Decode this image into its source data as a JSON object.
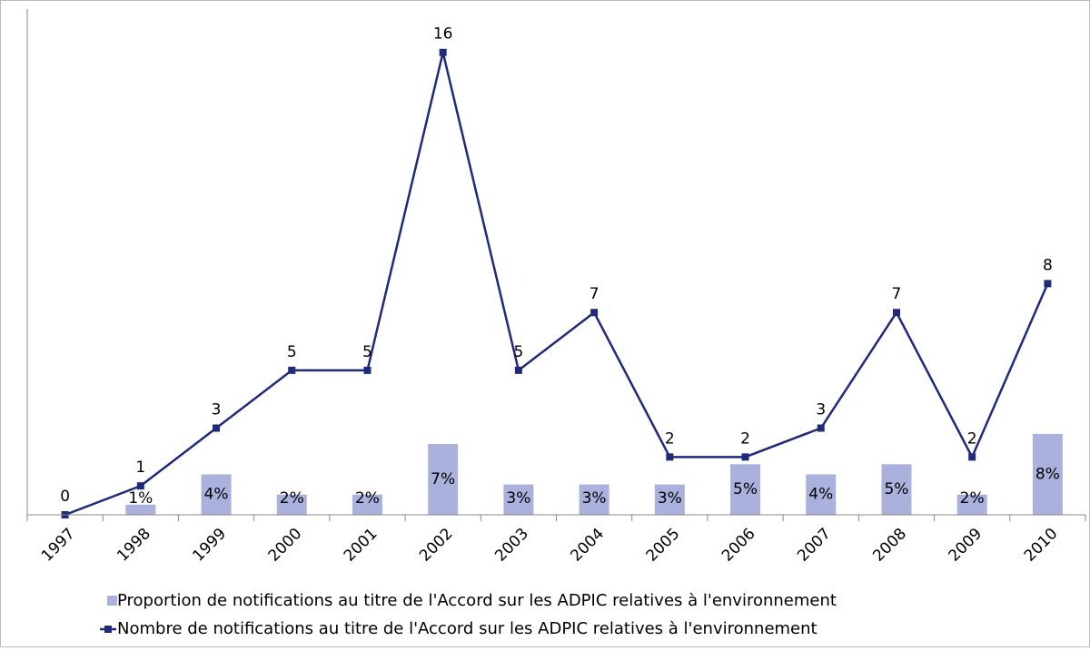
{
  "chart_data": {
    "type": "bar-line",
    "categories": [
      "1997",
      "1998",
      "1999",
      "2000",
      "2001",
      "2002",
      "2003",
      "2004",
      "2005",
      "2006",
      "2007",
      "2008",
      "2009",
      "2010"
    ],
    "series": [
      {
        "name": "Proportion de notifications au titre de l'Accord sur les ADPIC relatives à l'environnement",
        "type": "bar",
        "axis": "y2",
        "color": "#a9b1dc",
        "values": [
          null,
          1,
          4,
          2,
          2,
          7,
          3,
          3,
          3,
          5,
          4,
          5,
          2,
          8
        ],
        "value_labels": [
          null,
          "1%",
          "4%",
          "2%",
          "2%",
          "7%",
          "3%",
          "3%",
          "3%",
          "5%",
          "4%",
          "5%",
          "2%",
          "8%"
        ]
      },
      {
        "name": "Nombre de notifications au titre de l'Accord sur les ADPIC relatives à l'environnement",
        "type": "line",
        "color": "#1f2a7a",
        "values": [
          0,
          1,
          3,
          5,
          5,
          16,
          5,
          7,
          2,
          2,
          3,
          7,
          2,
          8
        ]
      }
    ],
    "ylim": [
      0,
      17.5
    ],
    "y2lim": [
      0,
      50
    ]
  }
}
